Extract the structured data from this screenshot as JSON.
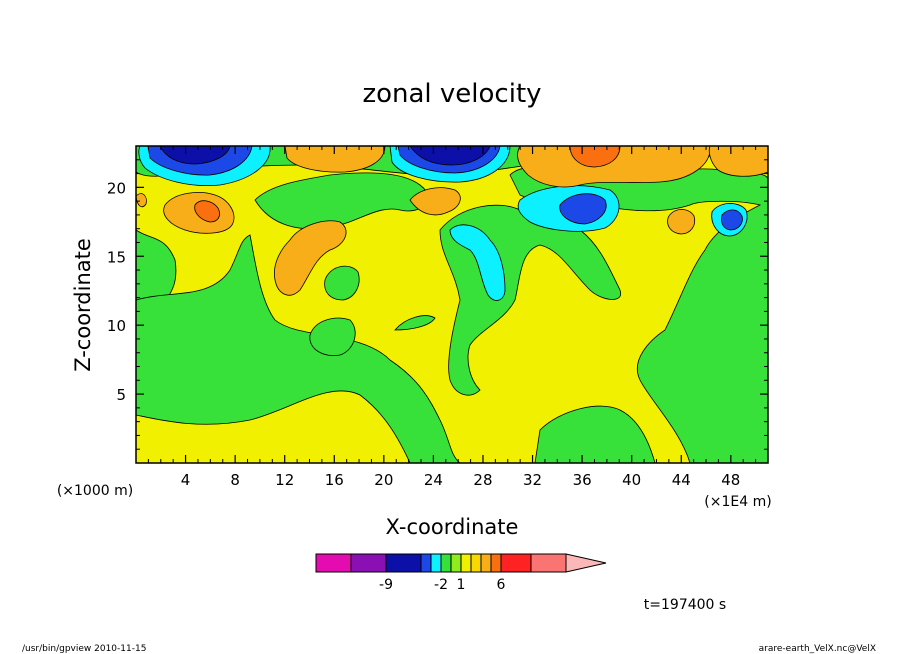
{
  "chart_data": {
    "type": "heatmap",
    "title": "zonal velocity",
    "xlabel": "X-coordinate",
    "ylabel": "Z-coordinate",
    "x_unit_left": "(×1000 m)",
    "x_unit_right": "(×1E4 m)",
    "xlim": [
      0,
      51
    ],
    "ylim": [
      0,
      23
    ],
    "xticks": [
      4,
      8,
      12,
      16,
      20,
      24,
      28,
      32,
      36,
      40,
      44,
      48
    ],
    "yticks": [
      5,
      10,
      15,
      20
    ],
    "grid": false,
    "field_description": "filled contours of zonal velocity",
    "colorbar": {
      "tick_labels": [
        {
          "label": "-9",
          "index": 1
        },
        {
          "label": "-2",
          "index": 4
        },
        {
          "label": "1",
          "index": 6
        },
        {
          "label": "6",
          "index": 10
        }
      ],
      "colors": [
        "#e40cb0",
        "#8a10b4",
        "#0c10a8",
        "#1c48e8",
        "#0cf0ff",
        "#38e03a",
        "#90ec1c",
        "#f0f000",
        "#f8d800",
        "#f8ae18",
        "#fa7010",
        "#ff2222",
        "#fa7474",
        "#fcb8b8"
      ]
    },
    "regions": [
      {
        "level": "neg_strong",
        "color": "#1010b0",
        "x": [
          1.5,
          6.5
        ],
        "z": [
          21.5,
          23
        ]
      },
      {
        "level": "neg_strong",
        "color": "#1010b0",
        "x": [
          21.5,
          27
        ],
        "z": [
          20.5,
          23
        ]
      },
      {
        "level": "neg_mid",
        "color": "#1c48e8",
        "x": [
          34.5,
          38.5
        ],
        "z": [
          16.5,
          19
        ]
      },
      {
        "level": "neg_mid",
        "color": "#1c48e8",
        "x": [
          47,
          48.5
        ],
        "z": [
          16.5,
          18
        ]
      },
      {
        "level": "neg_weak",
        "color": "#0cf0ff",
        "x": [
          26,
          29
        ],
        "z": [
          11,
          17
        ]
      },
      {
        "level": "pos_mid",
        "color": "#f8ae18",
        "x": [
          2.5,
          7.5
        ],
        "z": [
          17,
          20
        ]
      },
      {
        "level": "pos_mid",
        "color": "#f8ae18",
        "x": [
          12,
          17
        ],
        "z": [
          12,
          17
        ]
      },
      {
        "level": "pos_mid",
        "color": "#f8ae18",
        "x": [
          31,
          41
        ],
        "z": [
          19.5,
          23
        ]
      },
      {
        "level": "pos_strong",
        "color": "#fa7010",
        "x": [
          35,
          39
        ],
        "z": [
          21.5,
          23
        ]
      }
    ],
    "time_label": "t=197400 s"
  },
  "footer": {
    "left": "/usr/bin/gpview   2010-11-15",
    "right": "arare-earth_VelX.nc@VelX"
  }
}
